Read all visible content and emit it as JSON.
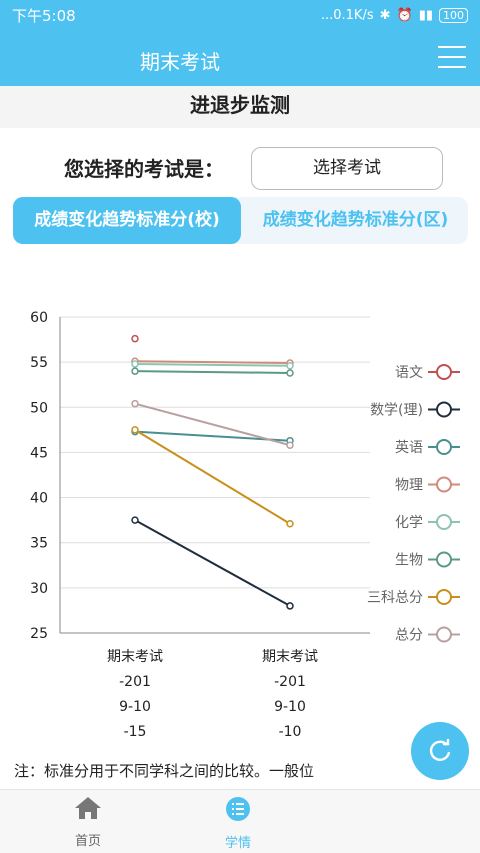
{
  "status_bar": {
    "time": "下午5:08",
    "network": "...0.1K/s",
    "battery": "100"
  },
  "app_bar": {
    "title": "期末考试"
  },
  "subheader": {
    "title": "进退步监测"
  },
  "exam_select": {
    "label": "您选择的考试是：",
    "button": "选择考试"
  },
  "tabs": [
    {
      "label": "成绩变化趋势标准分(校)",
      "active": true
    },
    {
      "label": "成绩变化趋势标准分(区)",
      "active": false
    }
  ],
  "chart_data": {
    "type": "line",
    "categories": [
      [
        "期末考试",
        "-201",
        "9-10",
        "-15"
      ],
      [
        "期末考试",
        "-201",
        "9-10",
        "-10"
      ]
    ],
    "ylim": [
      25,
      60
    ],
    "yticks": [
      25,
      30,
      35,
      40,
      45,
      50,
      55,
      60
    ],
    "grid": true,
    "legend_position": "right",
    "series": [
      {
        "name": "语文",
        "color": "#c0504d",
        "values": [
          57.6,
          null
        ]
      },
      {
        "name": "数学(理)",
        "color": "#1f2d3d",
        "values": [
          37.5,
          28.0
        ]
      },
      {
        "name": "英语",
        "color": "#4a8f8f",
        "values": [
          47.3,
          46.3
        ]
      },
      {
        "name": "物理",
        "color": "#d08a7a",
        "values": [
          55.1,
          54.9
        ]
      },
      {
        "name": "化学",
        "color": "#8cc4b0",
        "values": [
          54.8,
          54.6
        ]
      },
      {
        "name": "生物",
        "color": "#5a9a80",
        "values": [
          54.0,
          53.8
        ]
      },
      {
        "name": "三科总分",
        "color": "#c8901a",
        "values": [
          47.5,
          37.1
        ]
      },
      {
        "name": "总分",
        "color": "#b8a0a0",
        "values": [
          50.4,
          45.8
        ]
      }
    ]
  },
  "note": "注：标准分用于不同学科之间的比较。一般位",
  "bottom_nav": [
    {
      "label": "首页",
      "icon": "home-icon",
      "active": false
    },
    {
      "label": "学情",
      "icon": "list-icon",
      "active": true
    }
  ]
}
